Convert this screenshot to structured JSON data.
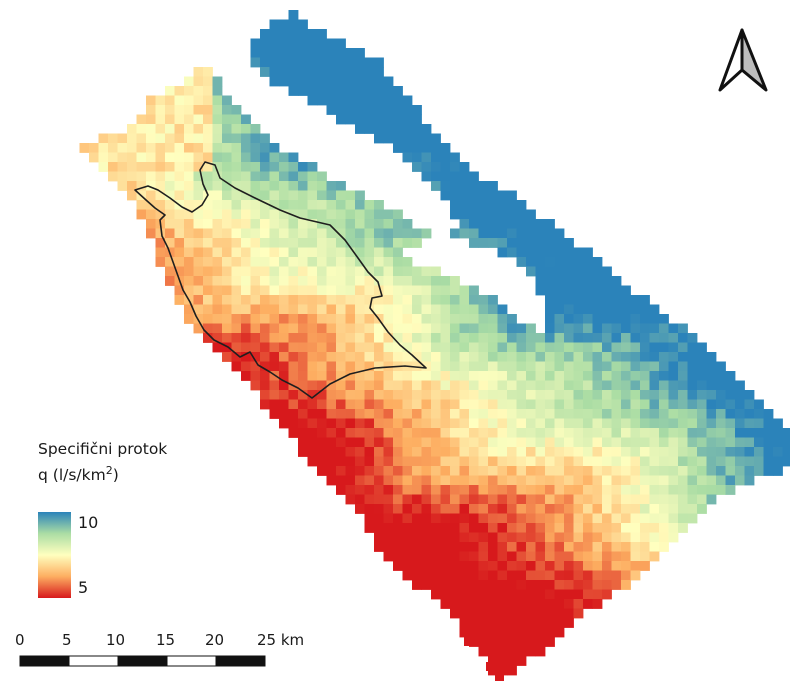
{
  "legend": {
    "title_line1": "Specifični protok",
    "title_line2_prefix": "q (l/s/km",
    "title_line2_sup": "2",
    "title_line2_suffix": ")",
    "max_label": "10",
    "min_label": "5",
    "max_value": 10,
    "min_value": 5,
    "colors": [
      "#d7191c",
      "#fdae61",
      "#ffffbf",
      "#abdda4",
      "#2b83ba"
    ]
  },
  "scale_bar": {
    "labels": [
      "0",
      "5",
      "10",
      "15",
      "20",
      "25 km"
    ],
    "ticks_km": [
      0,
      5,
      10,
      15,
      20,
      25
    ]
  },
  "north_arrow": {
    "icon": "north-arrow-icon"
  }
}
